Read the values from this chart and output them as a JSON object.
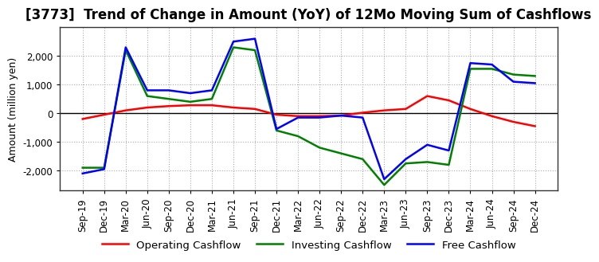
{
  "title": "[3773]  Trend of Change in Amount (YoY) of 12Mo Moving Sum of Cashflows",
  "ylabel": "Amount (million yen)",
  "x_labels": [
    "Sep-19",
    "Dec-19",
    "Mar-20",
    "Jun-20",
    "Sep-20",
    "Dec-20",
    "Mar-21",
    "Jun-21",
    "Sep-21",
    "Dec-21",
    "Mar-22",
    "Jun-22",
    "Sep-22",
    "Dec-22",
    "Mar-23",
    "Jun-23",
    "Sep-23",
    "Dec-23",
    "Mar-24",
    "Jun-24",
    "Sep-24",
    "Dec-24"
  ],
  "operating": [
    -200,
    -50,
    100,
    200,
    250,
    280,
    280,
    200,
    150,
    -50,
    -100,
    -100,
    -80,
    20,
    100,
    150,
    600,
    450,
    150,
    -100,
    -300,
    -450
  ],
  "investing": [
    -1900,
    -1900,
    2200,
    600,
    500,
    400,
    500,
    2300,
    2200,
    -600,
    -800,
    -1200,
    -1400,
    -1600,
    -2500,
    -1750,
    -1700,
    -1800,
    1550,
    1550,
    1350,
    1300
  ],
  "free": [
    -2100,
    -1950,
    2300,
    800,
    800,
    700,
    800,
    2500,
    2600,
    -550,
    -150,
    -150,
    -80,
    -150,
    -2300,
    -1600,
    -1100,
    -1300,
    1750,
    1700,
    1100,
    1050
  ],
  "ylim": [
    -2700,
    3000
  ],
  "yticks": [
    -2000,
    -1000,
    0,
    1000,
    2000
  ],
  "operating_color": "#ff0000",
  "investing_color": "#008000",
  "free_color": "#0000ff",
  "line_width": 1.8,
  "grid_color": "#aaaaaa",
  "background_color": "#ffffff",
  "title_fontsize": 12,
  "axis_fontsize": 9,
  "tick_fontsize": 8.5
}
